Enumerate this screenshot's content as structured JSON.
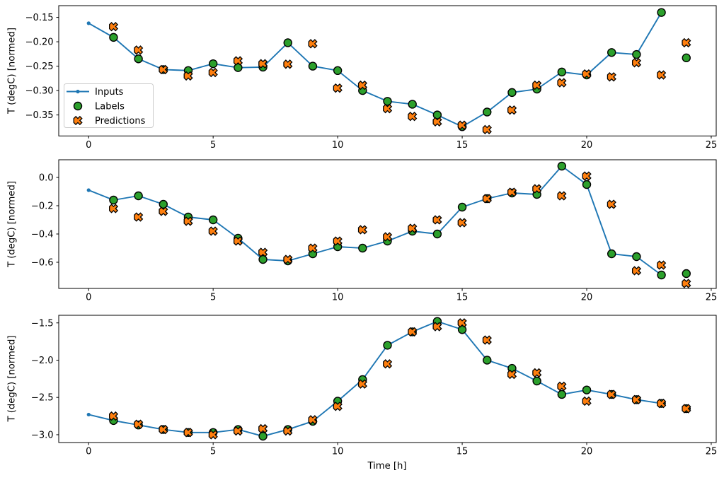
{
  "figure": {
    "xlabel": "Time [h]",
    "ylabel": "T (degC) [normed]",
    "colors": {
      "inputs": "#1f77b4",
      "labels": "#2ca02c",
      "predictions": "#ff7f0e",
      "marker_edge": "#000000",
      "spine": "#000000",
      "legend_border": "#cccccc",
      "background": "#ffffff",
      "text": "#000000"
    },
    "legend": {
      "items": [
        {
          "label": "Inputs",
          "handle": "line-dot",
          "color": "#1f77b4"
        },
        {
          "label": "Labels",
          "handle": "circle",
          "color": "#2ca02c"
        },
        {
          "label": "Predictions",
          "handle": "x",
          "color": "#ff7f0e"
        }
      ]
    }
  },
  "chart_data": [
    {
      "type": "line+scatter",
      "ylabel": "T (degC) [normed]",
      "xlim": [
        -1.2,
        25.2
      ],
      "ylim": [
        -0.393,
        -0.126
      ],
      "xticks": {
        "values": [
          0,
          5,
          10,
          15,
          20,
          25
        ],
        "labels": [
          "0",
          "5",
          "10",
          "15",
          "20",
          "25"
        ]
      },
      "yticks": {
        "values": [
          -0.15,
          -0.2,
          -0.25,
          -0.3,
          -0.35
        ],
        "labels": [
          "−0.15",
          "−0.20",
          "−0.25",
          "−0.30",
          "−0.35"
        ]
      },
      "series": [
        {
          "name": "Inputs",
          "type": "line",
          "marker": "dot",
          "x": [
            0,
            1,
            2,
            3,
            4,
            5,
            6,
            7,
            8,
            9,
            10,
            11,
            12,
            13,
            14,
            15,
            16,
            17,
            18,
            19,
            20,
            21,
            22,
            23
          ],
          "values": [
            -0.162,
            -0.191,
            -0.235,
            -0.257,
            -0.259,
            -0.245,
            -0.253,
            -0.252,
            -0.202,
            -0.25,
            -0.259,
            -0.3,
            -0.322,
            -0.328,
            -0.35,
            -0.374,
            -0.344,
            -0.304,
            -0.297,
            -0.262,
            -0.268,
            -0.222,
            -0.226,
            -0.14
          ]
        },
        {
          "name": "Labels",
          "type": "scatter",
          "marker": "circle",
          "x": [
            1,
            2,
            3,
            4,
            5,
            6,
            7,
            8,
            9,
            10,
            11,
            12,
            13,
            14,
            15,
            16,
            17,
            18,
            19,
            20,
            21,
            22,
            23,
            24
          ],
          "values": [
            -0.191,
            -0.235,
            -0.257,
            -0.259,
            -0.245,
            -0.253,
            -0.252,
            -0.202,
            -0.25,
            -0.259,
            -0.3,
            -0.322,
            -0.328,
            -0.35,
            -0.374,
            -0.344,
            -0.304,
            -0.297,
            -0.262,
            -0.268,
            -0.222,
            -0.226,
            -0.14,
            -0.233
          ]
        },
        {
          "name": "Predictions",
          "type": "scatter",
          "marker": "X",
          "x": [
            1,
            2,
            3,
            4,
            5,
            6,
            7,
            8,
            9,
            10,
            11,
            12,
            13,
            14,
            15,
            16,
            17,
            18,
            19,
            20,
            21,
            22,
            23,
            24
          ],
          "values": [
            -0.169,
            -0.217,
            -0.257,
            -0.27,
            -0.263,
            -0.239,
            -0.245,
            -0.246,
            -0.204,
            -0.295,
            -0.289,
            -0.337,
            -0.353,
            -0.364,
            -0.371,
            -0.38,
            -0.34,
            -0.289,
            -0.284,
            -0.266,
            -0.272,
            -0.243,
            -0.268,
            -0.202
          ]
        }
      ]
    },
    {
      "type": "line+scatter",
      "ylabel": "T (degC) [normed]",
      "xlim": [
        -1.2,
        25.2
      ],
      "ylim": [
        -0.785,
        0.125
      ],
      "xticks": {
        "values": [
          0,
          5,
          10,
          15,
          20,
          25
        ],
        "labels": [
          "0",
          "5",
          "10",
          "15",
          "20",
          "25"
        ]
      },
      "yticks": {
        "values": [
          0.0,
          -0.2,
          -0.4,
          -0.6
        ],
        "labels": [
          "0.0",
          "−0.2",
          "−0.4",
          "−0.6"
        ]
      },
      "series": [
        {
          "name": "Inputs",
          "type": "line",
          "marker": "dot",
          "x": [
            0,
            1,
            2,
            3,
            4,
            5,
            6,
            7,
            8,
            9,
            10,
            11,
            12,
            13,
            14,
            15,
            16,
            17,
            18,
            19,
            20,
            21,
            22,
            23
          ],
          "values": [
            -0.09,
            -0.16,
            -0.13,
            -0.19,
            -0.28,
            -0.3,
            -0.43,
            -0.58,
            -0.59,
            -0.54,
            -0.49,
            -0.5,
            -0.45,
            -0.38,
            -0.4,
            -0.21,
            -0.15,
            -0.11,
            -0.12,
            0.08,
            -0.05,
            -0.54,
            -0.56,
            -0.69
          ]
        },
        {
          "name": "Labels",
          "type": "scatter",
          "marker": "circle",
          "x": [
            1,
            2,
            3,
            4,
            5,
            6,
            7,
            8,
            9,
            10,
            11,
            12,
            13,
            14,
            15,
            16,
            17,
            18,
            19,
            20,
            21,
            22,
            23,
            24
          ],
          "values": [
            -0.16,
            -0.13,
            -0.19,
            -0.28,
            -0.3,
            -0.43,
            -0.58,
            -0.59,
            -0.54,
            -0.49,
            -0.5,
            -0.45,
            -0.38,
            -0.4,
            -0.21,
            -0.15,
            -0.11,
            -0.12,
            0.08,
            -0.05,
            -0.54,
            -0.56,
            -0.69,
            -0.68
          ]
        },
        {
          "name": "Predictions",
          "type": "scatter",
          "marker": "X",
          "x": [
            1,
            2,
            3,
            4,
            5,
            6,
            7,
            8,
            9,
            10,
            11,
            12,
            13,
            14,
            15,
            16,
            17,
            18,
            19,
            20,
            21,
            22,
            23,
            24
          ],
          "values": [
            -0.22,
            -0.28,
            -0.24,
            -0.31,
            -0.38,
            -0.45,
            -0.53,
            -0.58,
            -0.5,
            -0.45,
            -0.37,
            -0.42,
            -0.36,
            -0.3,
            -0.32,
            -0.15,
            -0.105,
            -0.08,
            -0.13,
            0.01,
            -0.19,
            -0.66,
            -0.62,
            -0.75
          ]
        }
      ]
    },
    {
      "type": "line+scatter",
      "ylabel": "T (degC) [normed]",
      "xlabel": "Time [h]",
      "xlim": [
        -1.2,
        25.2
      ],
      "ylim": [
        -3.105,
        -1.398
      ],
      "xticks": {
        "values": [
          0,
          5,
          10,
          15,
          20,
          25
        ],
        "labels": [
          "0",
          "5",
          "10",
          "15",
          "20",
          "25"
        ]
      },
      "yticks": {
        "values": [
          -1.5,
          -2.0,
          -2.5,
          -3.0
        ],
        "labels": [
          "−1.5",
          "−2.0",
          "−2.5",
          "−3.0"
        ]
      },
      "series": [
        {
          "name": "Inputs",
          "type": "line",
          "marker": "dot",
          "x": [
            0,
            1,
            2,
            3,
            4,
            5,
            6,
            7,
            8,
            9,
            10,
            11,
            12,
            13,
            14,
            15,
            16,
            17,
            18,
            19,
            20,
            21,
            22,
            23
          ],
          "values": [
            -2.73,
            -2.81,
            -2.87,
            -2.93,
            -2.97,
            -2.97,
            -2.93,
            -3.02,
            -2.93,
            -2.82,
            -2.55,
            -2.26,
            -1.8,
            -1.62,
            -1.48,
            -1.59,
            -2.0,
            -2.11,
            -2.28,
            -2.46,
            -2.4,
            -2.46,
            -2.53,
            -2.58
          ]
        },
        {
          "name": "Labels",
          "type": "scatter",
          "marker": "circle",
          "x": [
            1,
            2,
            3,
            4,
            5,
            6,
            7,
            8,
            9,
            10,
            11,
            12,
            13,
            14,
            15,
            16,
            17,
            18,
            19,
            20,
            21,
            22,
            23,
            24
          ],
          "values": [
            -2.81,
            -2.87,
            -2.93,
            -2.97,
            -2.97,
            -2.93,
            -3.02,
            -2.93,
            -2.82,
            -2.55,
            -2.26,
            -1.8,
            -1.62,
            -1.48,
            -1.59,
            -2.0,
            -2.11,
            -2.28,
            -2.46,
            -2.4,
            -2.46,
            -2.53,
            -2.58,
            -2.65
          ]
        },
        {
          "name": "Predictions",
          "type": "scatter",
          "marker": "X",
          "x": [
            1,
            2,
            3,
            4,
            5,
            6,
            7,
            8,
            9,
            10,
            11,
            12,
            13,
            14,
            15,
            16,
            17,
            18,
            19,
            20,
            21,
            22,
            23,
            24
          ],
          "values": [
            -2.75,
            -2.86,
            -2.93,
            -2.97,
            -3.0,
            -2.95,
            -2.92,
            -2.95,
            -2.8,
            -2.62,
            -2.32,
            -2.05,
            -1.62,
            -1.55,
            -1.5,
            -1.73,
            -2.19,
            -2.17,
            -2.35,
            -2.55,
            -2.46,
            -2.53,
            -2.58,
            -2.65
          ]
        }
      ]
    }
  ]
}
